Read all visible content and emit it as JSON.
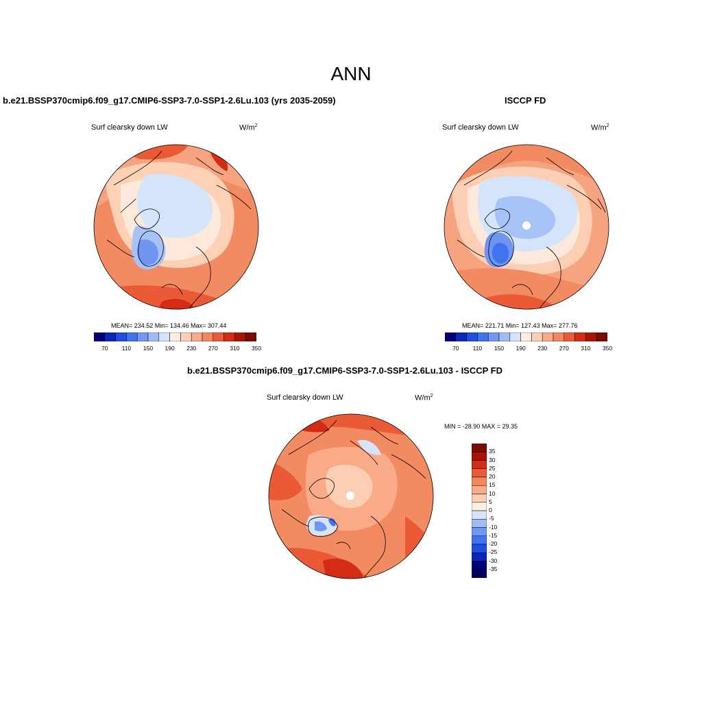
{
  "title": "ANN",
  "panels": [
    {
      "title": "b.e21.BSSP370cmip6.f09_g17.CMIP6-SSP3-7.0-SSP1-2.6Lu.103 (yrs 2035-2059)",
      "variable": "Surf clearsky down LW",
      "units_base": "W/m",
      "units_exp": "2",
      "stats": "MEAN= 234.52  Min= 134.46  Max= 307.44"
    },
    {
      "title": "ISCCP FD",
      "variable": "Surf clearsky down LW",
      "units_base": "W/m",
      "units_exp": "2",
      "stats": "MEAN= 221.71  Min= 127.43  Max= 277.76"
    },
    {
      "title": "b.e21.BSSP370cmip6.f09_g17.CMIP6-SSP3-7.0-SSP1-2.6Lu.103 - ISCCP FD",
      "variable": "Surf clearsky down LW",
      "units_base": "W/m",
      "units_exp": "2",
      "stats": "MIN = -28.90 MAX =  29.35"
    }
  ],
  "horizontal_colorbar": {
    "colors": [
      "#00007a",
      "#0c26b8",
      "#1f4fe0",
      "#4273ee",
      "#7097f2",
      "#a0bcf7",
      "#d3e4fb",
      "#fdeee2",
      "#fccfb4",
      "#f9ab89",
      "#f38660",
      "#ea5a36",
      "#d42b14",
      "#a91405",
      "#7a0c03"
    ],
    "tick_labels": [
      "70",
      "110",
      "150",
      "190",
      "230",
      "270",
      "310",
      "350"
    ]
  },
  "vertical_colorbar": {
    "colors_top_to_bottom": [
      "#7a0c03",
      "#a91405",
      "#d42b14",
      "#ea5a36",
      "#f38660",
      "#f9ab89",
      "#fccfb4",
      "#fdeee2",
      "#d3e4fb",
      "#a0bcf7",
      "#7097f2",
      "#4273ee",
      "#1f4fe0",
      "#0c26b8",
      "#00007a",
      "#00005a"
    ],
    "tick_labels": [
      "35",
      "30",
      "25",
      "20",
      "15",
      "10",
      "5",
      "0",
      "-5",
      "-10",
      "-15",
      "-20",
      "-25",
      "-30",
      "-35"
    ]
  }
}
